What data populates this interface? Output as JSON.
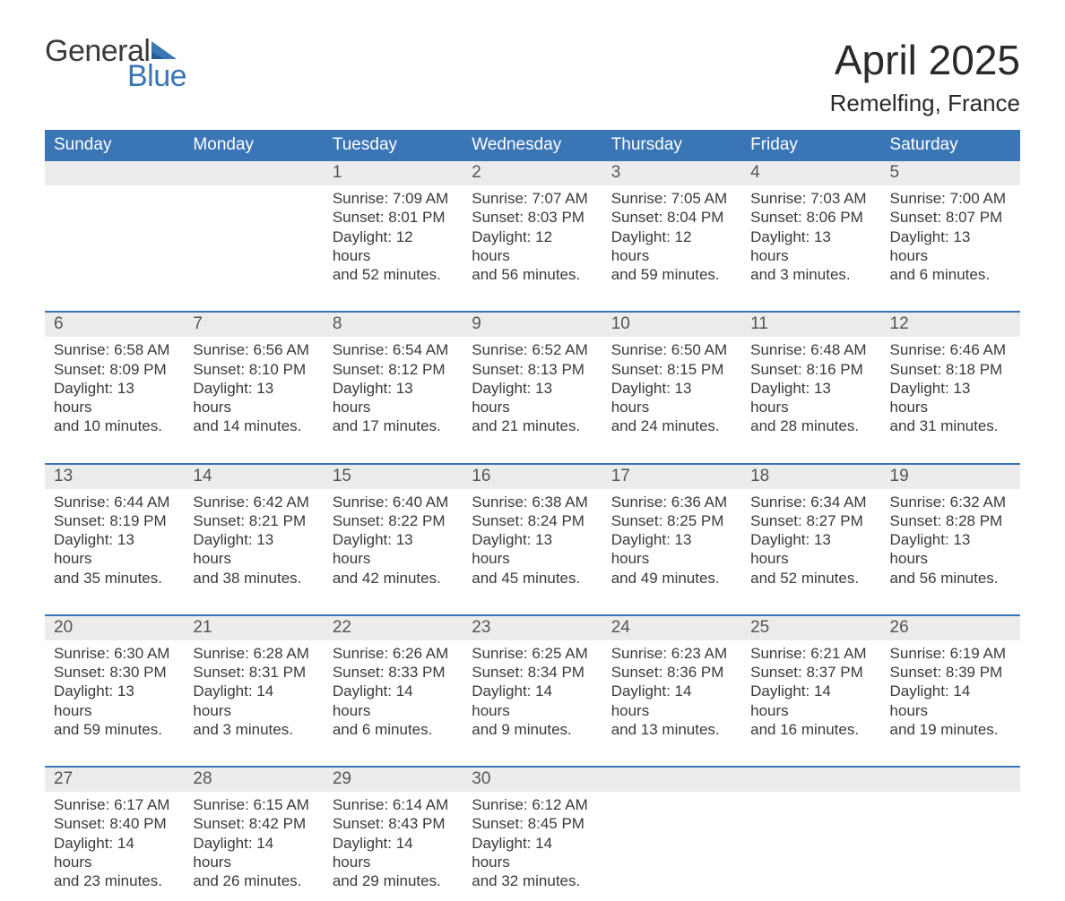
{
  "logo": {
    "word1": "General",
    "word2": "Blue",
    "triangle_color": "#3a75b5"
  },
  "title": "April 2025",
  "location": "Remelfing, France",
  "colors": {
    "header_bg": "#3a75b5",
    "header_text": "#ffffff",
    "daynum_bg": "#ececec",
    "text": "#3a3a3a",
    "week_border": "#3a75b5"
  },
  "fonts": {
    "title_size": 46,
    "location_size": 26,
    "header_size": 19,
    "body_size": 17
  },
  "day_labels": [
    "Sunday",
    "Monday",
    "Tuesday",
    "Wednesday",
    "Thursday",
    "Friday",
    "Saturday"
  ],
  "weeks": [
    {
      "nums": [
        "",
        "",
        "1",
        "2",
        "3",
        "4",
        "5"
      ],
      "cells": [
        {},
        {},
        {
          "sunrise": "Sunrise: 7:09 AM",
          "sunset": "Sunset: 8:01 PM",
          "day1": "Daylight: 12 hours",
          "day2": "and 52 minutes."
        },
        {
          "sunrise": "Sunrise: 7:07 AM",
          "sunset": "Sunset: 8:03 PM",
          "day1": "Daylight: 12 hours",
          "day2": "and 56 minutes."
        },
        {
          "sunrise": "Sunrise: 7:05 AM",
          "sunset": "Sunset: 8:04 PM",
          "day1": "Daylight: 12 hours",
          "day2": "and 59 minutes."
        },
        {
          "sunrise": "Sunrise: 7:03 AM",
          "sunset": "Sunset: 8:06 PM",
          "day1": "Daylight: 13 hours",
          "day2": "and 3 minutes."
        },
        {
          "sunrise": "Sunrise: 7:00 AM",
          "sunset": "Sunset: 8:07 PM",
          "day1": "Daylight: 13 hours",
          "day2": "and 6 minutes."
        }
      ]
    },
    {
      "nums": [
        "6",
        "7",
        "8",
        "9",
        "10",
        "11",
        "12"
      ],
      "cells": [
        {
          "sunrise": "Sunrise: 6:58 AM",
          "sunset": "Sunset: 8:09 PM",
          "day1": "Daylight: 13 hours",
          "day2": "and 10 minutes."
        },
        {
          "sunrise": "Sunrise: 6:56 AM",
          "sunset": "Sunset: 8:10 PM",
          "day1": "Daylight: 13 hours",
          "day2": "and 14 minutes."
        },
        {
          "sunrise": "Sunrise: 6:54 AM",
          "sunset": "Sunset: 8:12 PM",
          "day1": "Daylight: 13 hours",
          "day2": "and 17 minutes."
        },
        {
          "sunrise": "Sunrise: 6:52 AM",
          "sunset": "Sunset: 8:13 PM",
          "day1": "Daylight: 13 hours",
          "day2": "and 21 minutes."
        },
        {
          "sunrise": "Sunrise: 6:50 AM",
          "sunset": "Sunset: 8:15 PM",
          "day1": "Daylight: 13 hours",
          "day2": "and 24 minutes."
        },
        {
          "sunrise": "Sunrise: 6:48 AM",
          "sunset": "Sunset: 8:16 PM",
          "day1": "Daylight: 13 hours",
          "day2": "and 28 minutes."
        },
        {
          "sunrise": "Sunrise: 6:46 AM",
          "sunset": "Sunset: 8:18 PM",
          "day1": "Daylight: 13 hours",
          "day2": "and 31 minutes."
        }
      ]
    },
    {
      "nums": [
        "13",
        "14",
        "15",
        "16",
        "17",
        "18",
        "19"
      ],
      "cells": [
        {
          "sunrise": "Sunrise: 6:44 AM",
          "sunset": "Sunset: 8:19 PM",
          "day1": "Daylight: 13 hours",
          "day2": "and 35 minutes."
        },
        {
          "sunrise": "Sunrise: 6:42 AM",
          "sunset": "Sunset: 8:21 PM",
          "day1": "Daylight: 13 hours",
          "day2": "and 38 minutes."
        },
        {
          "sunrise": "Sunrise: 6:40 AM",
          "sunset": "Sunset: 8:22 PM",
          "day1": "Daylight: 13 hours",
          "day2": "and 42 minutes."
        },
        {
          "sunrise": "Sunrise: 6:38 AM",
          "sunset": "Sunset: 8:24 PM",
          "day1": "Daylight: 13 hours",
          "day2": "and 45 minutes."
        },
        {
          "sunrise": "Sunrise: 6:36 AM",
          "sunset": "Sunset: 8:25 PM",
          "day1": "Daylight: 13 hours",
          "day2": "and 49 minutes."
        },
        {
          "sunrise": "Sunrise: 6:34 AM",
          "sunset": "Sunset: 8:27 PM",
          "day1": "Daylight: 13 hours",
          "day2": "and 52 minutes."
        },
        {
          "sunrise": "Sunrise: 6:32 AM",
          "sunset": "Sunset: 8:28 PM",
          "day1": "Daylight: 13 hours",
          "day2": "and 56 minutes."
        }
      ]
    },
    {
      "nums": [
        "20",
        "21",
        "22",
        "23",
        "24",
        "25",
        "26"
      ],
      "cells": [
        {
          "sunrise": "Sunrise: 6:30 AM",
          "sunset": "Sunset: 8:30 PM",
          "day1": "Daylight: 13 hours",
          "day2": "and 59 minutes."
        },
        {
          "sunrise": "Sunrise: 6:28 AM",
          "sunset": "Sunset: 8:31 PM",
          "day1": "Daylight: 14 hours",
          "day2": "and 3 minutes."
        },
        {
          "sunrise": "Sunrise: 6:26 AM",
          "sunset": "Sunset: 8:33 PM",
          "day1": "Daylight: 14 hours",
          "day2": "and 6 minutes."
        },
        {
          "sunrise": "Sunrise: 6:25 AM",
          "sunset": "Sunset: 8:34 PM",
          "day1": "Daylight: 14 hours",
          "day2": "and 9 minutes."
        },
        {
          "sunrise": "Sunrise: 6:23 AM",
          "sunset": "Sunset: 8:36 PM",
          "day1": "Daylight: 14 hours",
          "day2": "and 13 minutes."
        },
        {
          "sunrise": "Sunrise: 6:21 AM",
          "sunset": "Sunset: 8:37 PM",
          "day1": "Daylight: 14 hours",
          "day2": "and 16 minutes."
        },
        {
          "sunrise": "Sunrise: 6:19 AM",
          "sunset": "Sunset: 8:39 PM",
          "day1": "Daylight: 14 hours",
          "day2": "and 19 minutes."
        }
      ]
    },
    {
      "nums": [
        "27",
        "28",
        "29",
        "30",
        "",
        "",
        ""
      ],
      "cells": [
        {
          "sunrise": "Sunrise: 6:17 AM",
          "sunset": "Sunset: 8:40 PM",
          "day1": "Daylight: 14 hours",
          "day2": "and 23 minutes."
        },
        {
          "sunrise": "Sunrise: 6:15 AM",
          "sunset": "Sunset: 8:42 PM",
          "day1": "Daylight: 14 hours",
          "day2": "and 26 minutes."
        },
        {
          "sunrise": "Sunrise: 6:14 AM",
          "sunset": "Sunset: 8:43 PM",
          "day1": "Daylight: 14 hours",
          "day2": "and 29 minutes."
        },
        {
          "sunrise": "Sunrise: 6:12 AM",
          "sunset": "Sunset: 8:45 PM",
          "day1": "Daylight: 14 hours",
          "day2": "and 32 minutes."
        },
        {},
        {},
        {}
      ]
    }
  ]
}
